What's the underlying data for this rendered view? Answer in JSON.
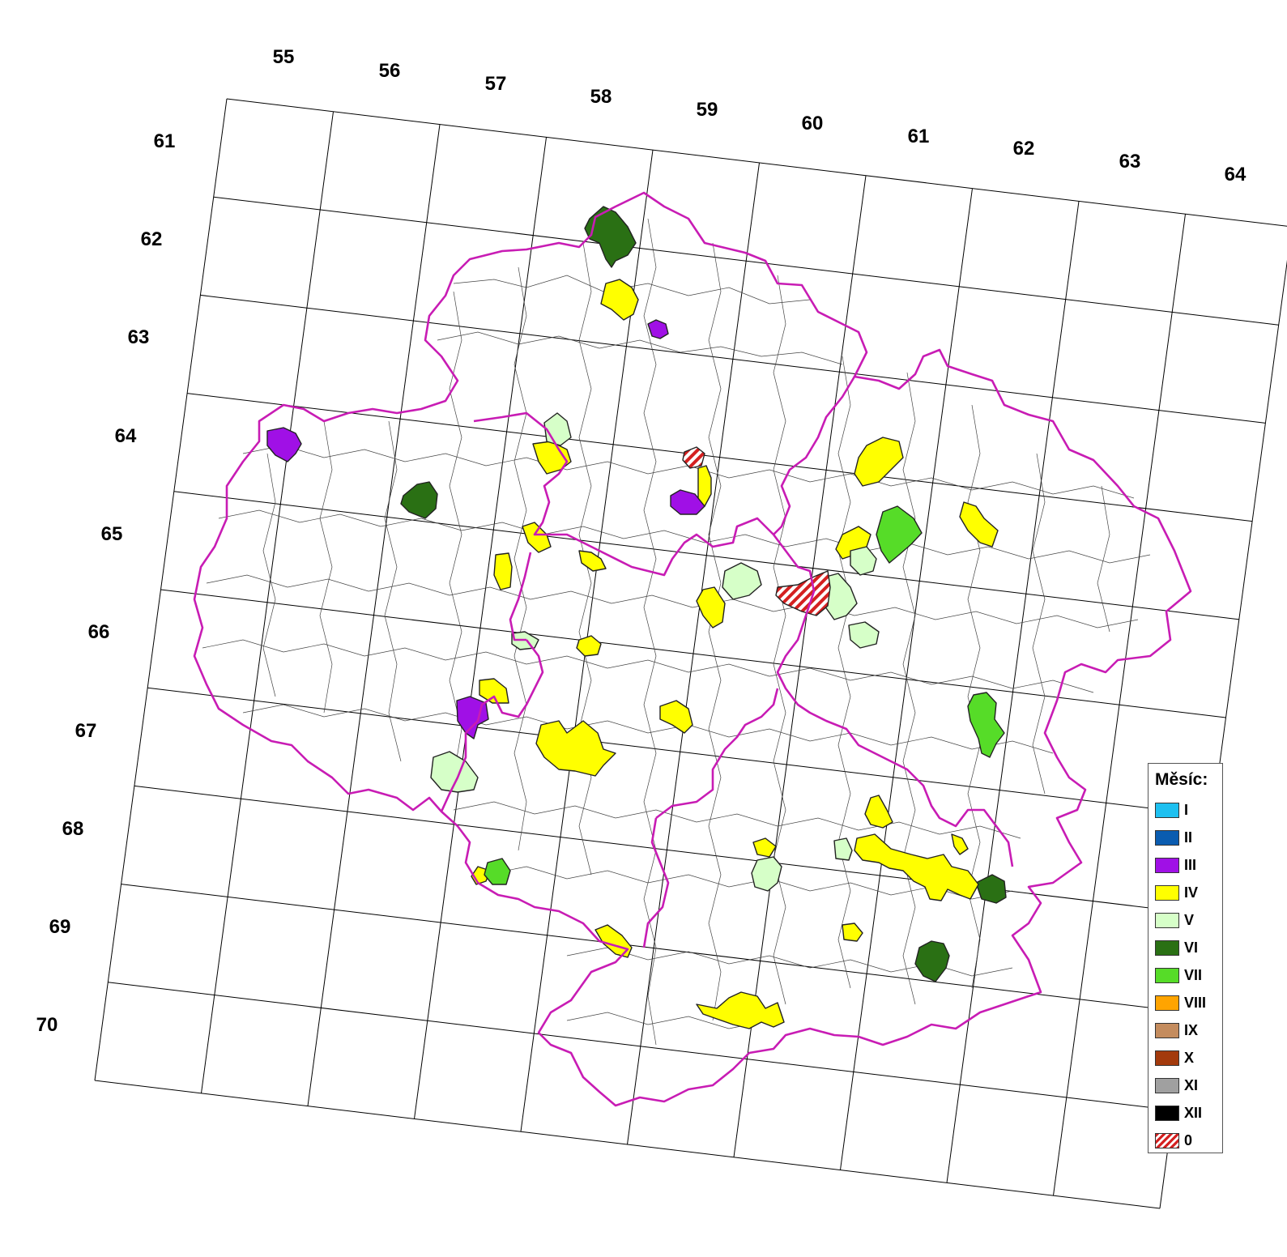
{
  "map": {
    "column_labels": [
      "55",
      "56",
      "57",
      "58",
      "59",
      "60",
      "61",
      "62",
      "63",
      "64"
    ],
    "row_labels": [
      "61",
      "62",
      "63",
      "64",
      "65",
      "66",
      "67",
      "68",
      "69",
      "70"
    ]
  },
  "legend": {
    "title": "Měsíc:",
    "items": [
      {
        "label": "I",
        "color": "#1ec0f0"
      },
      {
        "label": "II",
        "color": "#0a5cb0"
      },
      {
        "label": "III",
        "color": "#a010e6"
      },
      {
        "label": "IV",
        "color": "#ffff00"
      },
      {
        "label": "V",
        "color": "#d6ffc8"
      },
      {
        "label": "VI",
        "color": "#2a7014"
      },
      {
        "label": "VII",
        "color": "#56dc28"
      },
      {
        "label": "VIII",
        "color": "#ffa400"
      },
      {
        "label": "IX",
        "color": "#c48c5e"
      },
      {
        "label": "X",
        "color": "#a33a0c"
      },
      {
        "label": "XI",
        "color": "#a0a0a0"
      },
      {
        "label": "XII",
        "color": "#000000"
      },
      {
        "label": "0",
        "color": "#d42020",
        "pattern": "hatch"
      }
    ]
  }
}
